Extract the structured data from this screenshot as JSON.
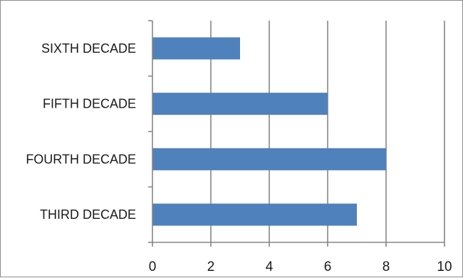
{
  "chart_data": {
    "type": "bar",
    "orientation": "horizontal",
    "categories": [
      "THIRD DECADE",
      "FOURTH DECADE",
      "FIFTH DECADE",
      "SIXTH DECADE"
    ],
    "values": [
      7,
      8,
      6,
      3
    ],
    "xlim": [
      0,
      10
    ],
    "xticks": [
      0,
      2,
      4,
      6,
      8,
      10
    ],
    "grid": "vertical",
    "legend": "none",
    "bar_color": "#4f81bd"
  }
}
